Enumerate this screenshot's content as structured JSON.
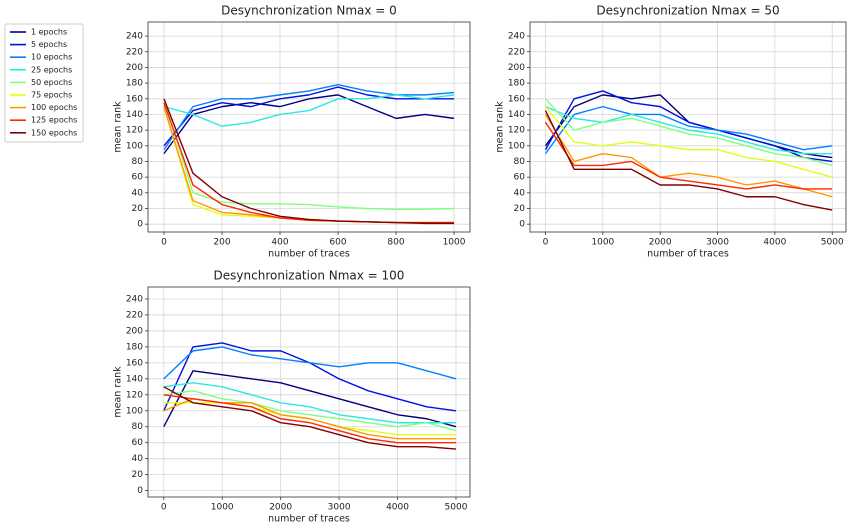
{
  "chart_data": [
    {
      "type": "line",
      "title": "Desynchronization Nmax = 0",
      "xlabel": "number of traces",
      "ylabel": "mean rank",
      "x": [
        0,
        100,
        200,
        300,
        400,
        500,
        600,
        700,
        800,
        900,
        1000
      ],
      "xlim": [
        -55,
        1055
      ],
      "ylim": [
        -10,
        258
      ],
      "xticks": [
        0,
        200,
        400,
        600,
        800,
        1000
      ],
      "yticks": [
        0,
        20,
        40,
        60,
        80,
        100,
        120,
        140,
        160,
        180,
        200,
        220,
        240
      ],
      "grid": true,
      "series": [
        {
          "name": "1 epochs",
          "color": "#00007f",
          "values": [
            90,
            140,
            150,
            155,
            150,
            160,
            165,
            150,
            135,
            140,
            135
          ]
        },
        {
          "name": "5 epochs",
          "color": "#0010e0",
          "values": [
            100,
            145,
            155,
            150,
            160,
            165,
            175,
            165,
            160,
            160,
            160
          ]
        },
        {
          "name": "10 epochs",
          "color": "#0080ff",
          "values": [
            95,
            150,
            160,
            160,
            165,
            170,
            178,
            170,
            165,
            165,
            168
          ]
        },
        {
          "name": "25 epochs",
          "color": "#2ee8e0",
          "values": [
            150,
            140,
            125,
            130,
            140,
            145,
            160,
            160,
            165,
            160,
            165
          ]
        },
        {
          "name": "50 epochs",
          "color": "#80ff80",
          "values": [
            160,
            40,
            28,
            26,
            26,
            25,
            22,
            20,
            19,
            19,
            20
          ]
        },
        {
          "name": "75 epochs",
          "color": "#e0ff18",
          "values": [
            150,
            25,
            12,
            10,
            8,
            5,
            4,
            3,
            2,
            2,
            2
          ]
        },
        {
          "name": "100 epochs",
          "color": "#ff9800",
          "values": [
            150,
            30,
            15,
            12,
            8,
            5,
            4,
            3,
            2,
            2,
            2
          ]
        },
        {
          "name": "125 epochs",
          "color": "#ff2800",
          "values": [
            155,
            50,
            25,
            15,
            8,
            5,
            4,
            3,
            2,
            2,
            2
          ]
        },
        {
          "name": "150 epochs",
          "color": "#800000",
          "values": [
            160,
            65,
            35,
            20,
            10,
            6,
            4,
            3,
            2,
            1,
            1
          ]
        }
      ]
    },
    {
      "type": "line",
      "title": "Desynchronization Nmax = 50",
      "xlabel": "number of traces",
      "ylabel": "mean rank",
      "x": [
        0,
        500,
        1000,
        1500,
        2000,
        2500,
        3000,
        3500,
        4000,
        4500,
        5000
      ],
      "xlim": [
        -270,
        5240
      ],
      "ylim": [
        -10,
        258
      ],
      "xticks": [
        0,
        1000,
        2000,
        3000,
        4000,
        5000
      ],
      "yticks": [
        0,
        20,
        40,
        60,
        80,
        100,
        120,
        140,
        160,
        180,
        200,
        220,
        240
      ],
      "grid": true,
      "series": [
        {
          "color": "#00007f",
          "values": [
            100,
            150,
            165,
            160,
            165,
            130,
            120,
            110,
            100,
            90,
            85
          ]
        },
        {
          "color": "#0010e0",
          "values": [
            95,
            160,
            170,
            155,
            150,
            130,
            120,
            110,
            100,
            85,
            80
          ]
        },
        {
          "color": "#0080ff",
          "values": [
            90,
            140,
            150,
            140,
            140,
            125,
            120,
            115,
            105,
            95,
            100
          ]
        },
        {
          "color": "#2ee8e0",
          "values": [
            150,
            135,
            130,
            140,
            130,
            120,
            115,
            105,
            95,
            90,
            90
          ]
        },
        {
          "color": "#80ff80",
          "values": [
            160,
            120,
            130,
            135,
            125,
            115,
            110,
            100,
            90,
            85,
            75
          ]
        },
        {
          "color": "#e0ff18",
          "values": [
            150,
            105,
            100,
            105,
            100,
            95,
            95,
            85,
            80,
            70,
            60
          ]
        },
        {
          "color": "#ff9800",
          "values": [
            140,
            80,
            90,
            85,
            60,
            65,
            60,
            50,
            55,
            45,
            35
          ]
        },
        {
          "color": "#ff2800",
          "values": [
            130,
            75,
            75,
            80,
            60,
            55,
            50,
            45,
            50,
            45,
            45
          ]
        },
        {
          "color": "#800000",
          "values": [
            145,
            70,
            70,
            70,
            50,
            50,
            45,
            35,
            35,
            25,
            18
          ]
        }
      ]
    },
    {
      "type": "line",
      "title": "Desynchronization Nmax = 100",
      "xlabel": "number of traces",
      "ylabel": "mean rank",
      "x": [
        0,
        500,
        1000,
        1500,
        2000,
        2500,
        3000,
        3500,
        4000,
        4500,
        5000
      ],
      "xlim": [
        -270,
        5240
      ],
      "ylim": [
        -8,
        255
      ],
      "xticks": [
        0,
        1000,
        2000,
        3000,
        4000,
        5000
      ],
      "yticks": [
        0,
        20,
        40,
        60,
        80,
        100,
        120,
        140,
        160,
        180,
        200,
        220,
        240
      ],
      "grid": true,
      "series": [
        {
          "color": "#00007f",
          "values": [
            80,
            150,
            145,
            140,
            135,
            125,
            115,
            105,
            95,
            90,
            80
          ]
        },
        {
          "color": "#0010e0",
          "values": [
            100,
            180,
            185,
            175,
            175,
            160,
            140,
            125,
            115,
            105,
            100
          ]
        },
        {
          "color": "#0080ff",
          "values": [
            140,
            175,
            180,
            170,
            165,
            160,
            155,
            160,
            160,
            150,
            140
          ]
        },
        {
          "color": "#2ee8e0",
          "values": [
            130,
            135,
            130,
            120,
            110,
            105,
            95,
            90,
            85,
            85,
            85
          ]
        },
        {
          "color": "#80ff80",
          "values": [
            120,
            125,
            115,
            110,
            100,
            95,
            90,
            85,
            80,
            85,
            75
          ]
        },
        {
          "color": "#e0ff18",
          "values": [
            110,
            110,
            110,
            105,
            95,
            90,
            80,
            75,
            70,
            70,
            70
          ]
        },
        {
          "color": "#ff9800",
          "values": [
            100,
            115,
            110,
            110,
            95,
            90,
            80,
            70,
            65,
            65,
            65
          ]
        },
        {
          "color": "#ff2800",
          "values": [
            120,
            115,
            110,
            105,
            90,
            85,
            75,
            65,
            60,
            60,
            60
          ]
        },
        {
          "color": "#800000",
          "values": [
            130,
            110,
            105,
            100,
            85,
            80,
            70,
            60,
            55,
            55,
            52
          ]
        }
      ]
    }
  ]
}
